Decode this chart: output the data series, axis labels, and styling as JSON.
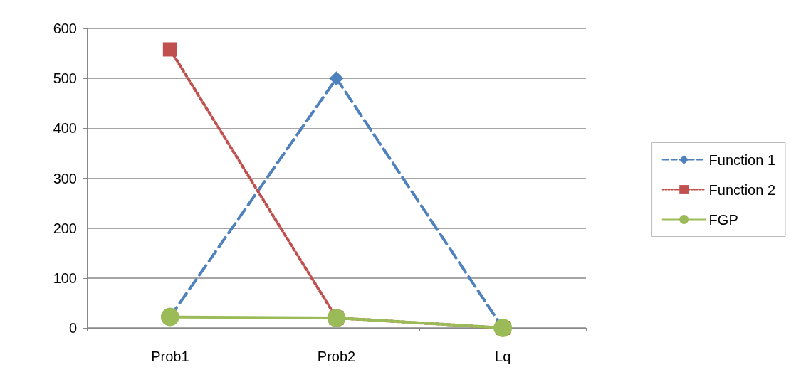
{
  "chart_data": {
    "type": "line",
    "categories": [
      "Prob1",
      "Prob2",
      "Lq"
    ],
    "series": [
      {
        "name": "Function 1",
        "color": "#4f81bd",
        "values": [
          22,
          500,
          0
        ],
        "marker": "diamond",
        "line_style": "dashed"
      },
      {
        "name": "Function 2",
        "color": "#c0504d",
        "values": [
          558,
          20,
          0
        ],
        "marker": "square",
        "line_style": "dotted"
      },
      {
        "name": "FGP",
        "color": "#9bbb59",
        "values": [
          22,
          20,
          0
        ],
        "marker": "circle",
        "line_style": "solid"
      }
    ],
    "ylim": [
      0,
      600
    ],
    "yticks": [
      0,
      100,
      200,
      300,
      400,
      500,
      600
    ],
    "grid": "y",
    "legend": "right"
  }
}
